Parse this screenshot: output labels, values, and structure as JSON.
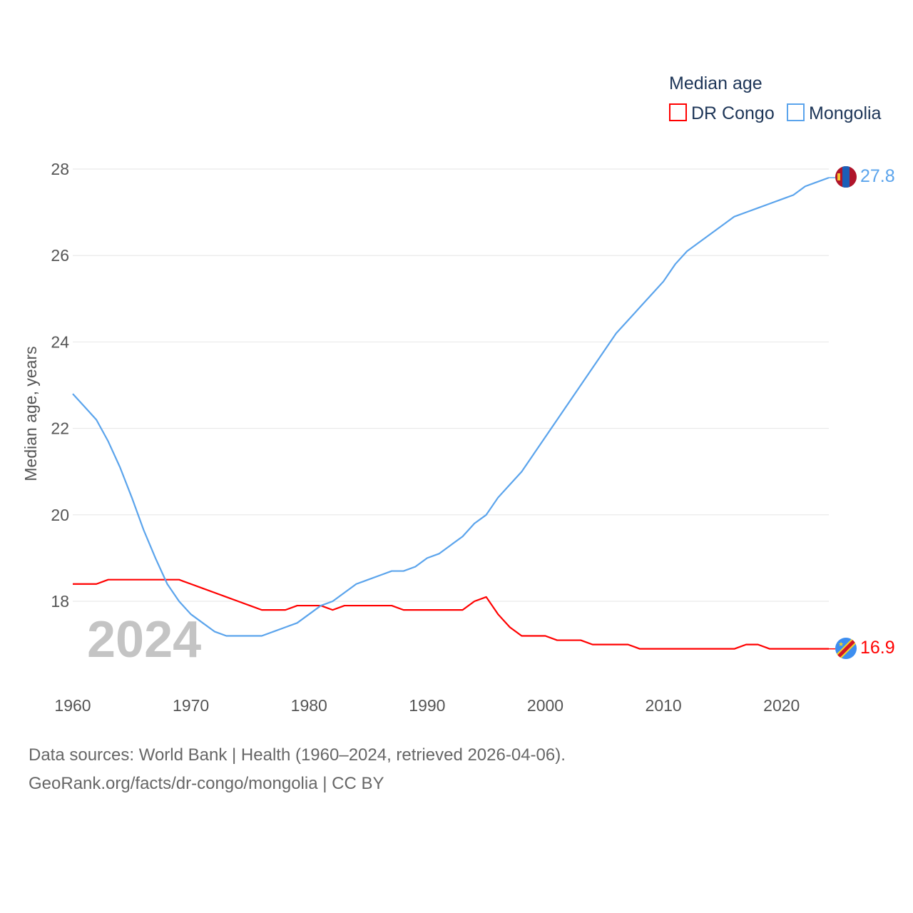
{
  "chart_data": {
    "type": "line",
    "title": "Median age",
    "xlabel": "",
    "ylabel": "Median age, years",
    "xlim": [
      1960,
      2024
    ],
    "ylim": [
      16.5,
      28.5
    ],
    "x_ticks": [
      "1960",
      "1970",
      "1980",
      "1990",
      "2000",
      "2010",
      "2020"
    ],
    "y_ticks": [
      "18",
      "20",
      "22",
      "24",
      "26",
      "28"
    ],
    "grid": true,
    "legend_placement": "top-right",
    "year_watermark": "2024",
    "x": [
      1960,
      1961,
      1962,
      1963,
      1964,
      1965,
      1966,
      1967,
      1968,
      1969,
      1970,
      1971,
      1972,
      1973,
      1974,
      1975,
      1976,
      1977,
      1978,
      1979,
      1980,
      1981,
      1982,
      1983,
      1984,
      1985,
      1986,
      1987,
      1988,
      1989,
      1990,
      1991,
      1992,
      1993,
      1994,
      1995,
      1996,
      1997,
      1998,
      1999,
      2000,
      2001,
      2002,
      2003,
      2004,
      2005,
      2006,
      2007,
      2008,
      2009,
      2010,
      2011,
      2012,
      2013,
      2014,
      2015,
      2016,
      2017,
      2018,
      2019,
      2020,
      2021,
      2022,
      2023,
      2024
    ],
    "series": [
      {
        "name": "DR Congo",
        "color": "#ff0000",
        "end_label": "16.9",
        "values": [
          18.4,
          18.4,
          18.4,
          18.5,
          18.5,
          18.5,
          18.5,
          18.5,
          18.5,
          18.5,
          18.4,
          18.3,
          18.2,
          18.1,
          18.0,
          17.9,
          17.8,
          17.8,
          17.8,
          17.9,
          17.9,
          17.9,
          17.8,
          17.9,
          17.9,
          17.9,
          17.9,
          17.9,
          17.8,
          17.8,
          17.8,
          17.8,
          17.8,
          17.8,
          18.0,
          18.1,
          17.7,
          17.4,
          17.2,
          17.2,
          17.2,
          17.1,
          17.1,
          17.1,
          17.0,
          17.0,
          17.0,
          17.0,
          16.9,
          16.9,
          16.9,
          16.9,
          16.9,
          16.9,
          16.9,
          16.9,
          16.9,
          17.0,
          17.0,
          16.9,
          16.9,
          16.9,
          16.9,
          16.9,
          16.9
        ]
      },
      {
        "name": "Mongolia",
        "color": "#5ba4ec",
        "end_label": "27.8",
        "values": [
          22.8,
          22.5,
          22.2,
          21.7,
          21.1,
          20.4,
          19.65,
          19.0,
          18.4,
          18.0,
          17.7,
          17.5,
          17.3,
          17.2,
          17.2,
          17.2,
          17.2,
          17.3,
          17.4,
          17.5,
          17.7,
          17.9,
          18.0,
          18.2,
          18.4,
          18.5,
          18.6,
          18.7,
          18.7,
          18.8,
          19.0,
          19.1,
          19.3,
          19.5,
          19.8,
          20.0,
          20.4,
          20.7,
          21.0,
          21.4,
          21.8,
          22.2,
          22.6,
          23.0,
          23.4,
          23.8,
          24.2,
          24.5,
          24.8,
          25.1,
          25.4,
          25.8,
          26.1,
          26.3,
          26.5,
          26.7,
          26.9,
          27.0,
          27.1,
          27.2,
          27.3,
          27.4,
          27.6,
          27.7,
          27.8
        ]
      }
    ]
  },
  "footer": {
    "line1": "Data sources: World Bank | Health (1960–2024, retrieved 2026-04-06).",
    "line2": "GeoRank.org/facts/dr-congo/mongolia | CC BY"
  }
}
